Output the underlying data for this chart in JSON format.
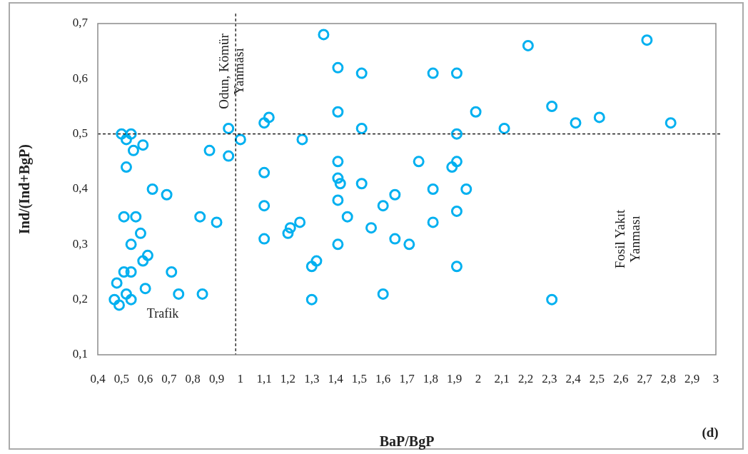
{
  "chart_data": {
    "type": "scatter",
    "xlabel": "BaP/BgP",
    "ylabel": "Ind/(Ind+BgP)",
    "marker": "circle",
    "grid": false,
    "legend": false,
    "xlim": [
      0.4,
      3
    ],
    "ylim": [
      0.1,
      0.7
    ],
    "xticks": [
      {
        "value": 0.4,
        "label": "0,4"
      },
      {
        "value": 0.5,
        "label": "0,5"
      },
      {
        "value": 0.6,
        "label": "0,6"
      },
      {
        "value": 0.7,
        "label": "0,7"
      },
      {
        "value": 0.8,
        "label": "0,8"
      },
      {
        "value": 0.9,
        "label": "0,9"
      },
      1,
      {
        "value": 1.1,
        "label": "1,1"
      },
      {
        "value": 1.2,
        "label": "1,2"
      },
      {
        "value": 1.3,
        "label": "1,3"
      },
      {
        "value": 1.4,
        "label": "1,4"
      },
      {
        "value": 1.5,
        "label": "1,5"
      },
      {
        "value": 1.6,
        "label": "1,6"
      },
      {
        "value": 1.7,
        "label": "1,7"
      },
      {
        "value": 1.8,
        "label": "1,8"
      },
      {
        "value": 1.9,
        "label": "1,9"
      },
      2,
      {
        "value": 2.1,
        "label": "2,1"
      },
      {
        "value": 2.2,
        "label": "2,2"
      },
      {
        "value": 2.3,
        "label": "2,3"
      },
      {
        "value": 2.4,
        "label": "2,4"
      },
      {
        "value": 2.5,
        "label": "2,5"
      },
      {
        "value": 2.6,
        "label": "2,6"
      },
      {
        "value": 2.7,
        "label": "2,7"
      },
      {
        "value": 2.8,
        "label": "2,8"
      },
      {
        "value": 2.9,
        "label": "2,9"
      },
      3
    ],
    "yticks": [
      {
        "value": 0.1,
        "label": "0,1"
      },
      {
        "value": 0.2,
        "label": "0,2"
      },
      {
        "value": 0.3,
        "label": "0,3"
      },
      {
        "value": 0.4,
        "label": "0,4"
      },
      {
        "value": 0.5,
        "label": "0,5"
      },
      {
        "value": 0.6,
        "label": "0,6"
      },
      {
        "value": 0.7,
        "label": "0,7"
      }
    ],
    "ref_lines": [
      {
        "axis": "x",
        "value": 0.98,
        "color": "#000000",
        "line_style": "dashed"
      },
      {
        "axis": "y",
        "value": 0.5,
        "color": "#000000",
        "line_style": "dashed"
      }
    ],
    "annotations": [
      "Odun, Kömür Yanması",
      "Trafik",
      "Fosil Yakıt Yanması",
      "(d)"
    ],
    "series": [
      {
        "color": "#00b0f0",
        "x": [
          0.5,
          0.54,
          0.52,
          0.59,
          0.55,
          0.52,
          0.63,
          0.69,
          0.51,
          0.56,
          0.58,
          0.54,
          0.61,
          0.59,
          0.51,
          0.54,
          0.71,
          0.48,
          0.52,
          0.47,
          0.49,
          0.54,
          0.6,
          0.74,
          0.84,
          0.83,
          0.9,
          0.87,
          0.95,
          0.95,
          1.0,
          1.1,
          1.12,
          1.26,
          1.1,
          1.1,
          1.1,
          1.2,
          1.21,
          1.25,
          1.3,
          1.32,
          1.3,
          1.35,
          1.41,
          1.51,
          1.81,
          1.91,
          1.41,
          1.51,
          1.99,
          2.11,
          1.91,
          1.41,
          1.41,
          1.42,
          1.51,
          1.41,
          1.45,
          1.55,
          1.6,
          1.65,
          1.65,
          1.71,
          1.41,
          1.6,
          1.75,
          1.81,
          1.81,
          1.89,
          1.91,
          1.95,
          1.91,
          1.91,
          2.21,
          2.71,
          2.31,
          2.41,
          2.51,
          2.81,
          2.31
        ],
        "values": [
          0.5,
          0.5,
          0.49,
          0.48,
          0.47,
          0.44,
          0.4,
          0.39,
          0.35,
          0.35,
          0.32,
          0.3,
          0.28,
          0.27,
          0.25,
          0.25,
          0.25,
          0.23,
          0.21,
          0.2,
          0.19,
          0.2,
          0.22,
          0.21,
          0.21,
          0.35,
          0.34,
          0.47,
          0.46,
          0.51,
          0.49,
          0.52,
          0.53,
          0.49,
          0.43,
          0.37,
          0.31,
          0.32,
          0.33,
          0.34,
          0.26,
          0.27,
          0.2,
          0.68,
          0.62,
          0.61,
          0.61,
          0.61,
          0.54,
          0.51,
          0.54,
          0.51,
          0.5,
          0.45,
          0.42,
          0.41,
          0.41,
          0.38,
          0.35,
          0.33,
          0.37,
          0.39,
          0.31,
          0.3,
          0.3,
          0.21,
          0.45,
          0.4,
          0.34,
          0.44,
          0.45,
          0.4,
          0.36,
          0.26,
          0.66,
          0.67,
          0.55,
          0.52,
          0.53,
          0.52,
          0.2
        ]
      }
    ]
  }
}
